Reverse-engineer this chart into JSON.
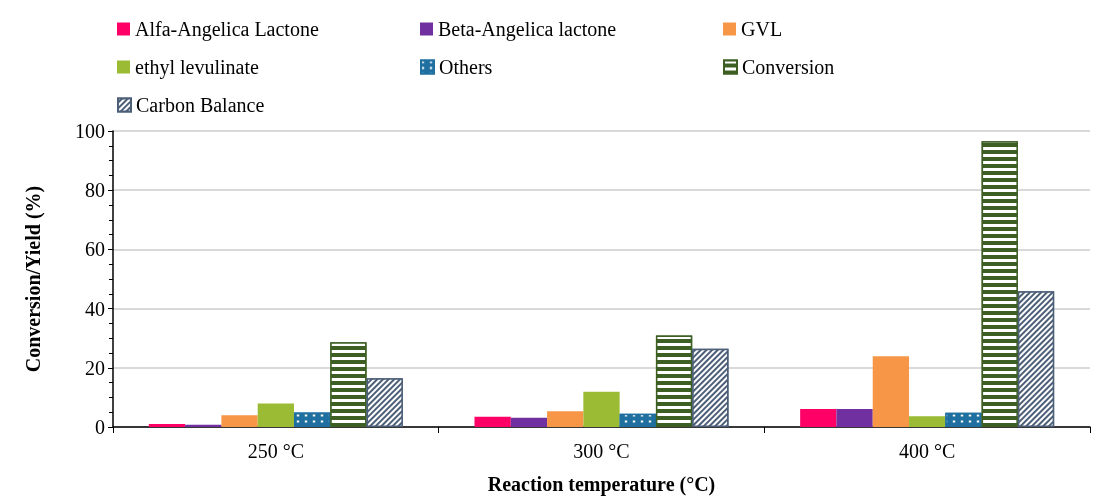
{
  "chart_data": {
    "type": "bar",
    "xlabel": "Reaction temperature (°C)",
    "ylabel": "Conversion/Yield (%)",
    "categories": [
      "250 °C",
      "300 °C",
      "400 °C"
    ],
    "series": [
      {
        "name": "Alfa-Angelica Lactone",
        "color": "#ff0066",
        "values": [
          1.0,
          3.5,
          6.1
        ]
      },
      {
        "name": "Beta-Angelica lactone",
        "color": "#7030a0",
        "values": [
          0.8,
          3.1,
          6.1
        ]
      },
      {
        "name": "GVL",
        "color": "#f79646",
        "values": [
          4.0,
          5.3,
          23.9
        ]
      },
      {
        "name": "ethyl levulinate",
        "color": "#9bbb34",
        "values": [
          7.9,
          11.9,
          3.6
        ]
      },
      {
        "name": "Others",
        "color": "#1f6fa0",
        "values": [
          4.9,
          4.5,
          4.8
        ]
      },
      {
        "name": "Conversion",
        "color": "#3d5f24",
        "values": [
          28.6,
          30.9,
          96.5
        ]
      },
      {
        "name": "Carbon Balance",
        "color": "#4d5f78",
        "values": [
          16.5,
          26.4,
          45.9
        ]
      }
    ],
    "ylim": [
      0,
      100
    ],
    "yticks": [
      0,
      20,
      40,
      60,
      80,
      100
    ],
    "grid": "y",
    "legend": "top"
  }
}
